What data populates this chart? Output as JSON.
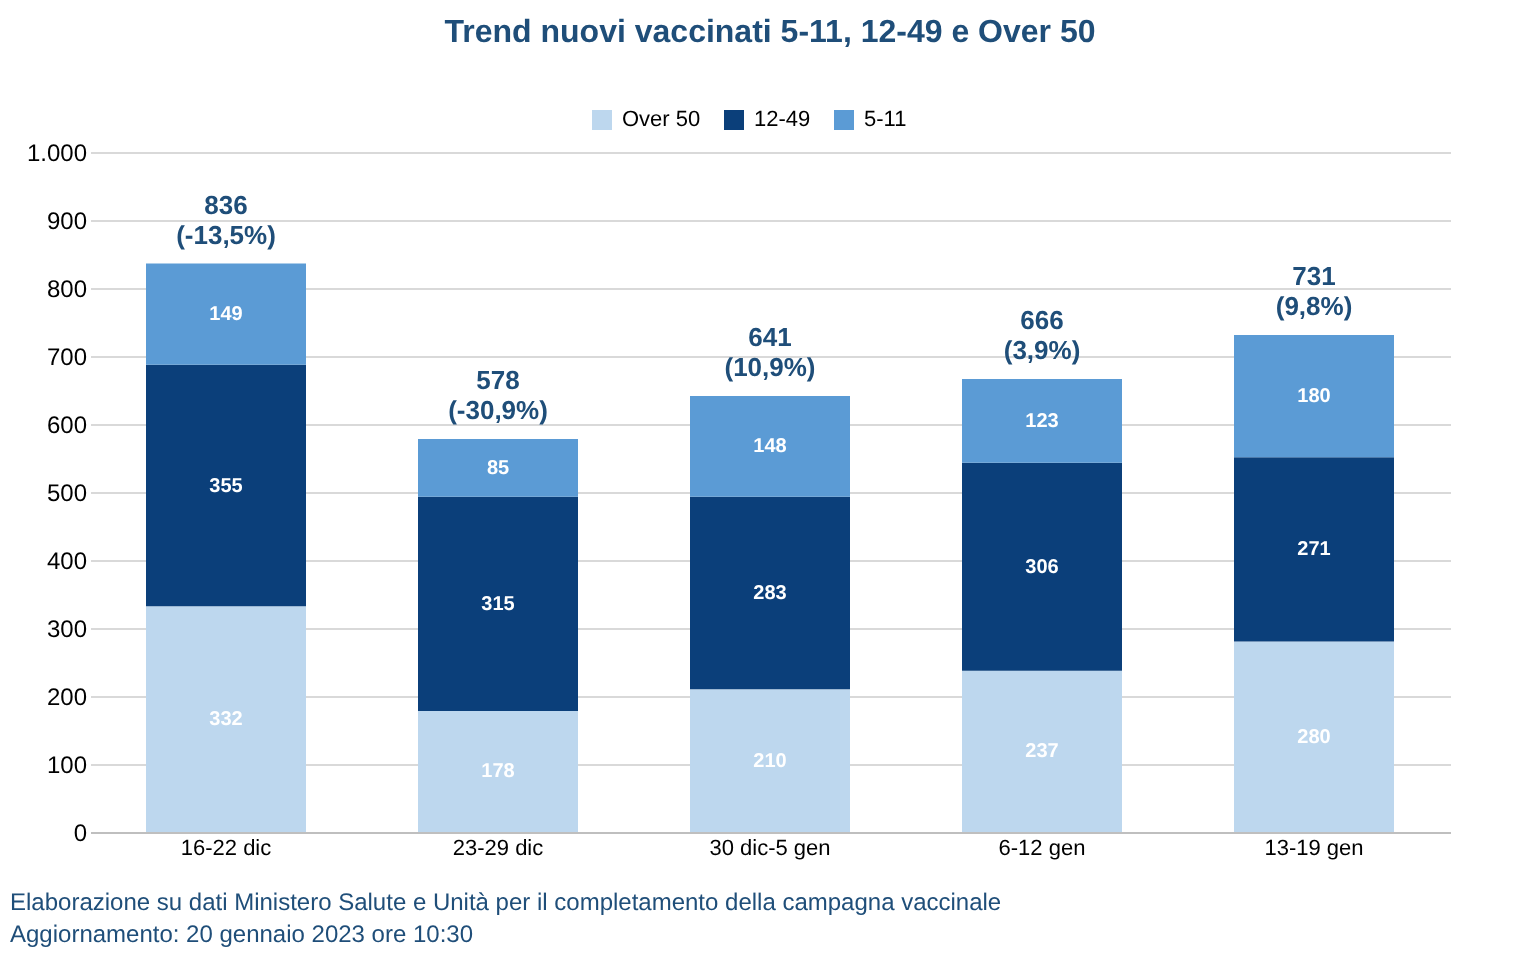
{
  "chart_data": {
    "type": "bar",
    "title": "Trend nuovi vaccinati 5-11, 12-49 e Over 50",
    "stacked": true,
    "categories": [
      "16-22 dic",
      "23-29 dic",
      "30 dic-5 gen",
      "6-12 gen",
      "13-19 gen"
    ],
    "series": [
      {
        "name": "Over 50",
        "color": "#bdd7ee",
        "values": [
          332,
          178,
          210,
          237,
          280
        ]
      },
      {
        "name": "12-49",
        "color": "#0b3f7a",
        "values": [
          355,
          315,
          283,
          306,
          271
        ]
      },
      {
        "name": "5-11",
        "color": "#5b9bd5",
        "values": [
          149,
          85,
          148,
          123,
          180
        ]
      }
    ],
    "totals": [
      "836\n(-13,5%)",
      "578\n(-30,9%)",
      "641\n(10,9%)",
      "666\n(3,9%)",
      "731\n(9,8%)"
    ],
    "data_labels": true,
    "ylim": [
      0,
      1000
    ],
    "yticks": [
      0,
      100,
      200,
      300,
      400,
      500,
      600,
      700,
      800,
      900,
      {
        "value": 1000,
        "label": "1.000"
      }
    ],
    "grid": "y",
    "legend": "top",
    "annotations": [
      "Elaborazione su dati Ministero Salute e Unità per il completamento della campagna vaccinale",
      "Aggiornamento: 20 gennaio 2023 ore 10:30"
    ]
  }
}
